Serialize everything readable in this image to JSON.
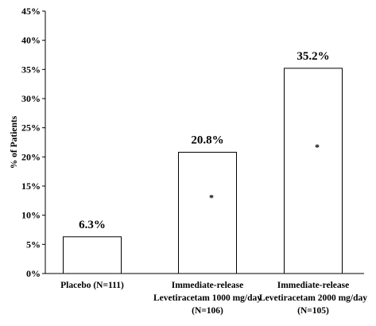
{
  "chart_data": {
    "type": "bar",
    "title": "",
    "xlabel": "",
    "ylabel": "% of Patients",
    "ylim": [
      0,
      45
    ],
    "yticks": [
      0,
      5,
      10,
      15,
      20,
      25,
      30,
      35,
      40,
      45
    ],
    "ytick_labels": [
      "0%",
      "5%",
      "10%",
      "15%",
      "20%",
      "25%",
      "30%",
      "35%",
      "40%",
      "45%"
    ],
    "grid": false,
    "legend": "none",
    "categories": [
      [
        "Placebo (N=111)"
      ],
      [
        "Immediate-release",
        "Levetiracetam 1000 mg/day",
        "(N=106)"
      ],
      [
        "Immediate-release",
        "Levetiracetam 2000 mg/day",
        "(N=105)"
      ]
    ],
    "values": [
      6.3,
      20.8,
      35.2
    ],
    "data_labels": [
      "6.3%",
      "20.8%",
      "35.2%"
    ],
    "annotations": [
      "",
      "*",
      "*"
    ],
    "colors": {
      "bar_fill": "#ffffff",
      "bar_stroke": "#000000",
      "axis": "#000000",
      "text": "#000000"
    }
  }
}
